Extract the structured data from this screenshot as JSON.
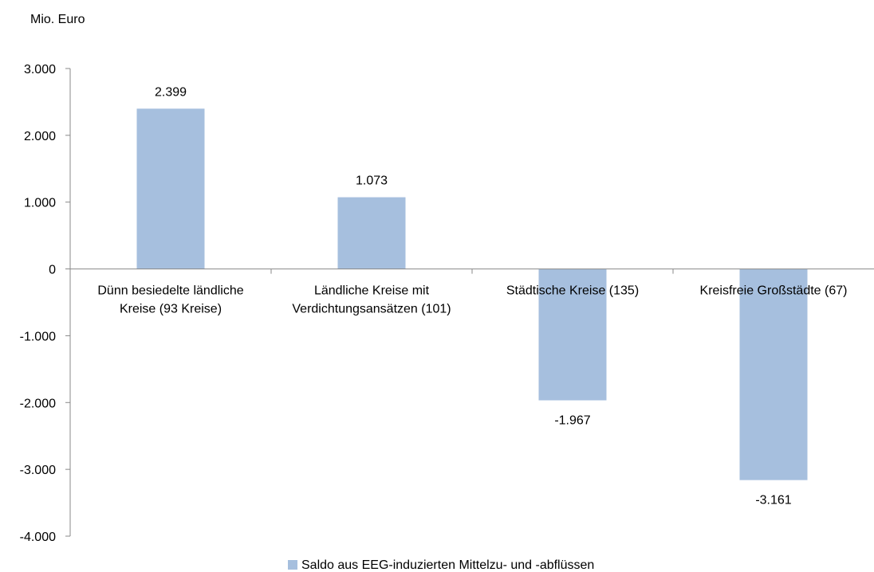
{
  "chart_data": {
    "type": "bar",
    "ylabel": "Mio. Euro",
    "categories": [
      [
        "Dünn besiedelte ländliche",
        "Kreise (93 Kreise)"
      ],
      [
        "Ländliche Kreise mit",
        "Verdichtungsansätzen (101)"
      ],
      [
        "Städtische Kreise (135)"
      ],
      [
        "Kreisfreie Großstädte (67)"
      ]
    ],
    "series": [
      {
        "name": "Saldo aus EEG-induzierten Mittelzu- und -abflüssen",
        "values": [
          2399,
          1073,
          -1967,
          -3161
        ],
        "value_labels": [
          "2.399",
          "1.073",
          "-1.967",
          "-3.161"
        ]
      }
    ],
    "ylim": [
      -4000,
      3000
    ],
    "yticks": [
      3000,
      2000,
      1000,
      0,
      -1000,
      -2000,
      -3000,
      -4000
    ],
    "ytick_labels": [
      "3.000",
      "2.000",
      "1.000",
      "0",
      "-1.000",
      "-2.000",
      "-3.000",
      "-4.000"
    ],
    "grid": false,
    "legend_position": "bottom",
    "bar_color": "#a6bfde"
  }
}
